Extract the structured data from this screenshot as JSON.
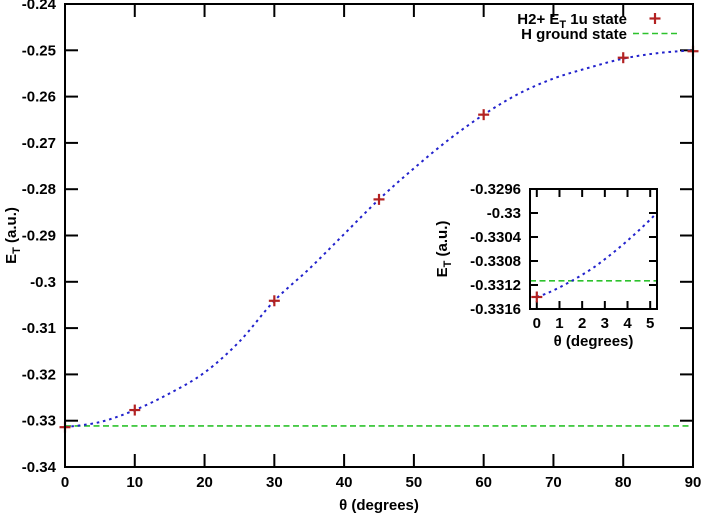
{
  "figure": {
    "background": "#ffffff",
    "frame_color": "#000000",
    "text_color": "#000000"
  },
  "legend": {
    "items": [
      {
        "pre": "H2+ E",
        "sub": "T",
        "post": " 1u state",
        "sample": "plus-marker",
        "color": "#b22222"
      },
      {
        "pre": "H ground state",
        "sub": "",
        "post": "",
        "sample": "dashed-line",
        "color": "#2dc22d"
      }
    ]
  },
  "chart_data": {
    "type": "scatter",
    "title": "",
    "grid": false,
    "legend_position": "top-right-inside",
    "main": {
      "xlabel": {
        "pre": "θ (degrees)",
        "sub": "",
        "post": ""
      },
      "ylabel": {
        "pre": "E",
        "sub": "T",
        "post": " (a.u.)"
      },
      "xlim": [
        0,
        90
      ],
      "ylim": [
        -0.34,
        -0.24
      ],
      "x_ticks": [
        {
          "v": 0,
          "label": "0"
        },
        {
          "v": 10,
          "label": "10"
        },
        {
          "v": 20,
          "label": "20"
        },
        {
          "v": 30,
          "label": "30"
        },
        {
          "v": 40,
          "label": "40"
        },
        {
          "v": 50,
          "label": "50"
        },
        {
          "v": 60,
          "label": "60"
        },
        {
          "v": 70,
          "label": "70"
        },
        {
          "v": 80,
          "label": "80"
        },
        {
          "v": 90,
          "label": "90"
        }
      ],
      "y_ticks": [
        {
          "v": -0.24,
          "label": "-0.24"
        },
        {
          "v": -0.25,
          "label": "-0.25"
        },
        {
          "v": -0.26,
          "label": "-0.26"
        },
        {
          "v": -0.27,
          "label": "-0.27"
        },
        {
          "v": -0.28,
          "label": "-0.28"
        },
        {
          "v": -0.29,
          "label": "-0.29"
        },
        {
          "v": -0.3,
          "label": "-0.3"
        },
        {
          "v": -0.31,
          "label": "-0.31"
        },
        {
          "v": -0.32,
          "label": "-0.32"
        },
        {
          "v": -0.33,
          "label": "-0.33"
        },
        {
          "v": -0.34,
          "label": "-0.34"
        }
      ],
      "series": {
        "points": {
          "name": "H2+ ET 1u state",
          "marker": "plus",
          "color": "#b22222",
          "data": [
            [
              0,
              -0.3314
            ],
            [
              10,
              -0.3277
            ],
            [
              30,
              -0.3041
            ],
            [
              45,
              -0.2822
            ],
            [
              60,
              -0.2639
            ],
            [
              80,
              -0.2516
            ],
            [
              90,
              -0.2502
            ]
          ]
        },
        "curve": {
          "name": "H2+ ET 1u state interpolating curve",
          "style": "dotted",
          "color": "#2222cc",
          "data": [
            [
              0,
              -0.3314
            ],
            [
              5,
              -0.3303
            ],
            [
              10,
              -0.3277
            ],
            [
              15,
              -0.3241
            ],
            [
              20,
              -0.3196
            ],
            [
              25,
              -0.3129
            ],
            [
              30,
              -0.3041
            ],
            [
              35,
              -0.2972
            ],
            [
              40,
              -0.2897
            ],
            [
              45,
              -0.2822
            ],
            [
              50,
              -0.2755
            ],
            [
              55,
              -0.2693
            ],
            [
              60,
              -0.2639
            ],
            [
              65,
              -0.2594
            ],
            [
              70,
              -0.2561
            ],
            [
              75,
              -0.2538
            ],
            [
              80,
              -0.2518
            ],
            [
              85,
              -0.2506
            ],
            [
              90,
              -0.25
            ]
          ]
        },
        "hline": {
          "name": "H ground state",
          "style": "dashed",
          "color": "#2dc22d",
          "y": -0.33113
        }
      }
    },
    "inset": {
      "xlabel": {
        "pre": "θ (degrees)",
        "sub": "",
        "post": ""
      },
      "ylabel": {
        "pre": "E",
        "sub": "T",
        "post": " (a.u.)"
      },
      "xlim": [
        -0.3,
        5.3
      ],
      "ylim": [
        -0.3316,
        -0.3296
      ],
      "x_ticks": [
        {
          "v": 0,
          "label": "0"
        },
        {
          "v": 1,
          "label": "1"
        },
        {
          "v": 2,
          "label": "2"
        },
        {
          "v": 3,
          "label": "3"
        },
        {
          "v": 4,
          "label": "4"
        },
        {
          "v": 5,
          "label": "5"
        }
      ],
      "y_ticks": [
        {
          "v": -0.3296,
          "label": "-0.3296"
        },
        {
          "v": -0.33,
          "label": "-0.33"
        },
        {
          "v": -0.3304,
          "label": "-0.3304"
        },
        {
          "v": -0.3308,
          "label": "-0.3308"
        },
        {
          "v": -0.3312,
          "label": "-0.3312"
        },
        {
          "v": -0.3316,
          "label": "-0.3316"
        }
      ],
      "series": {
        "points": {
          "name": "H2+ ET 1u state",
          "marker": "plus",
          "color": "#b22222",
          "data": [
            [
              0,
              -0.3314
            ]
          ]
        },
        "curve": {
          "name": "H2+ ET 1u state interpolating curve",
          "style": "dotted",
          "color": "#2222cc",
          "data": [
            [
              0,
              -0.3314
            ],
            [
              0.5,
              -0.33133
            ],
            [
              1,
              -0.33124
            ],
            [
              1.5,
              -0.33114
            ],
            [
              2,
              -0.33103
            ],
            [
              2.5,
              -0.33091
            ],
            [
              3,
              -0.33077
            ],
            [
              3.5,
              -0.33062
            ],
            [
              4,
              -0.33046
            ],
            [
              4.5,
              -0.33029
            ],
            [
              5,
              -0.33011
            ],
            [
              5.3,
              -0.32999
            ]
          ]
        },
        "hline": {
          "name": "H ground state",
          "style": "dashed",
          "color": "#2dc22d",
          "y": -0.33113
        }
      }
    }
  }
}
